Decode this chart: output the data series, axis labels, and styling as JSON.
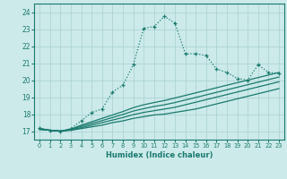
{
  "xlabel": "Humidex (Indice chaleur)",
  "bg_color": "#cceaea",
  "line_color": "#1a7a6e",
  "grid_color": "#aed4d4",
  "xlim": [
    -0.5,
    23.5
  ],
  "ylim": [
    16.5,
    24.5
  ],
  "xticks": [
    0,
    1,
    2,
    3,
    4,
    5,
    6,
    7,
    8,
    9,
    10,
    11,
    12,
    13,
    14,
    15,
    16,
    17,
    18,
    19,
    20,
    21,
    22,
    23
  ],
  "yticks": [
    17,
    18,
    19,
    20,
    21,
    22,
    23,
    24
  ],
  "main_x": [
    0,
    1,
    2,
    3,
    4,
    5,
    6,
    7,
    8,
    9,
    10,
    11,
    12,
    13,
    14,
    15,
    16,
    17,
    18,
    19,
    20,
    21,
    22,
    23
  ],
  "main_y": [
    17.2,
    17.05,
    17.0,
    17.15,
    17.6,
    18.1,
    18.3,
    19.3,
    19.7,
    20.9,
    23.05,
    23.15,
    23.75,
    23.35,
    21.55,
    21.55,
    21.45,
    20.65,
    20.45,
    20.1,
    20.0,
    20.9,
    20.45,
    20.4
  ],
  "band_lines": [
    [
      17.1,
      17.05,
      17.0,
      17.05,
      17.15,
      17.25,
      17.35,
      17.5,
      17.6,
      17.75,
      17.85,
      17.95,
      18.0,
      18.1,
      18.2,
      18.3,
      18.45,
      18.6,
      18.75,
      18.9,
      19.05,
      19.2,
      19.35,
      19.5
    ],
    [
      17.1,
      17.05,
      17.0,
      17.07,
      17.2,
      17.35,
      17.5,
      17.65,
      17.8,
      17.97,
      18.1,
      18.2,
      18.3,
      18.4,
      18.55,
      18.7,
      18.85,
      19.0,
      19.15,
      19.3,
      19.45,
      19.6,
      19.75,
      19.9
    ],
    [
      17.12,
      17.05,
      17.0,
      17.1,
      17.28,
      17.45,
      17.62,
      17.8,
      17.98,
      18.18,
      18.32,
      18.45,
      18.55,
      18.68,
      18.83,
      18.98,
      19.13,
      19.28,
      19.43,
      19.58,
      19.73,
      19.88,
      20.03,
      20.18
    ],
    [
      17.15,
      17.05,
      17.0,
      17.12,
      17.35,
      17.55,
      17.75,
      17.95,
      18.15,
      18.38,
      18.55,
      18.68,
      18.8,
      18.95,
      19.1,
      19.25,
      19.4,
      19.55,
      19.7,
      19.85,
      20.0,
      20.15,
      20.3,
      20.45
    ]
  ]
}
